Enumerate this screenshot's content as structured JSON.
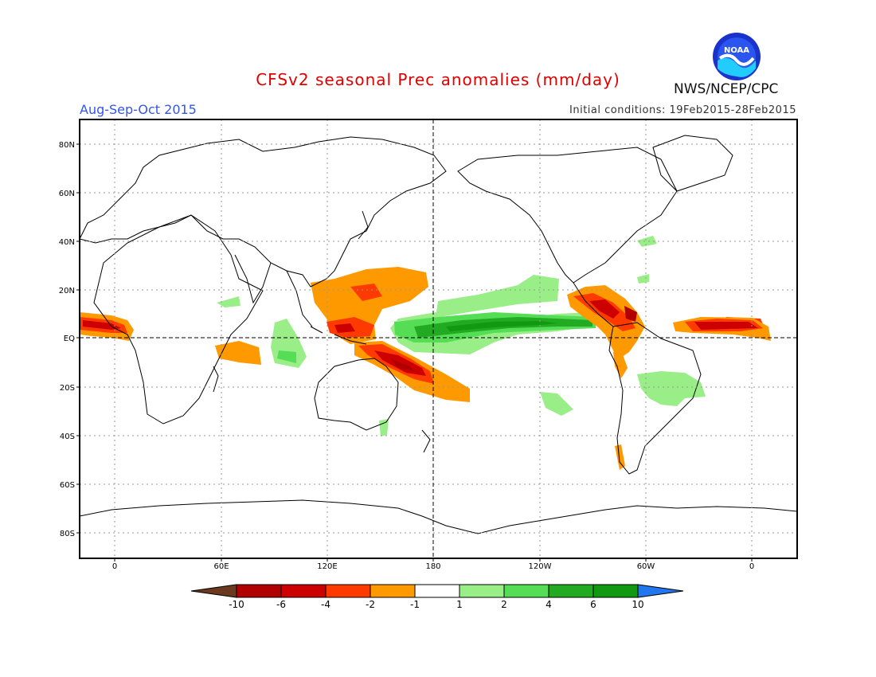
{
  "header": {
    "title": "CFSv2 seasonal Prec anomalies (mm/day)",
    "season": "Aug-Sep-Oct 2015",
    "initial_conditions": "Initial conditions: 19Feb2015-28Feb2015",
    "agency": "NWS/NCEP/CPC",
    "logo_text": "NOAA"
  },
  "map": {
    "lon_labels": [
      "0",
      "60E",
      "120E",
      "180",
      "120W",
      "60W",
      "0"
    ],
    "lat_labels": [
      "80N",
      "60N",
      "40N",
      "20N",
      "EQ",
      "20S",
      "40S",
      "60S",
      "80S"
    ]
  },
  "colorbar": {
    "labels": [
      "-10",
      "-6",
      "-4",
      "-2",
      "-1",
      "1",
      "2",
      "4",
      "6",
      "10"
    ],
    "colors": [
      "#6b3a1e",
      "#b00000",
      "#cc0000",
      "#ff3a00",
      "#ff9900",
      "#ffffff",
      "#99ee88",
      "#55dd55",
      "#22aa22",
      "#119911",
      "#2277ee"
    ]
  },
  "anomalies": [
    {
      "region": "tropical-atlantic-africa",
      "level": "-4"
    },
    {
      "region": "west-pacific-maritime",
      "level": "-4"
    },
    {
      "region": "south-pacific-spcz",
      "level": "-6"
    },
    {
      "region": "central-pacific-itcz",
      "level": "4"
    },
    {
      "region": "central-america",
      "level": "-6"
    },
    {
      "region": "central-atlantic",
      "level": "-6"
    },
    {
      "region": "brazil",
      "level": "2"
    }
  ]
}
